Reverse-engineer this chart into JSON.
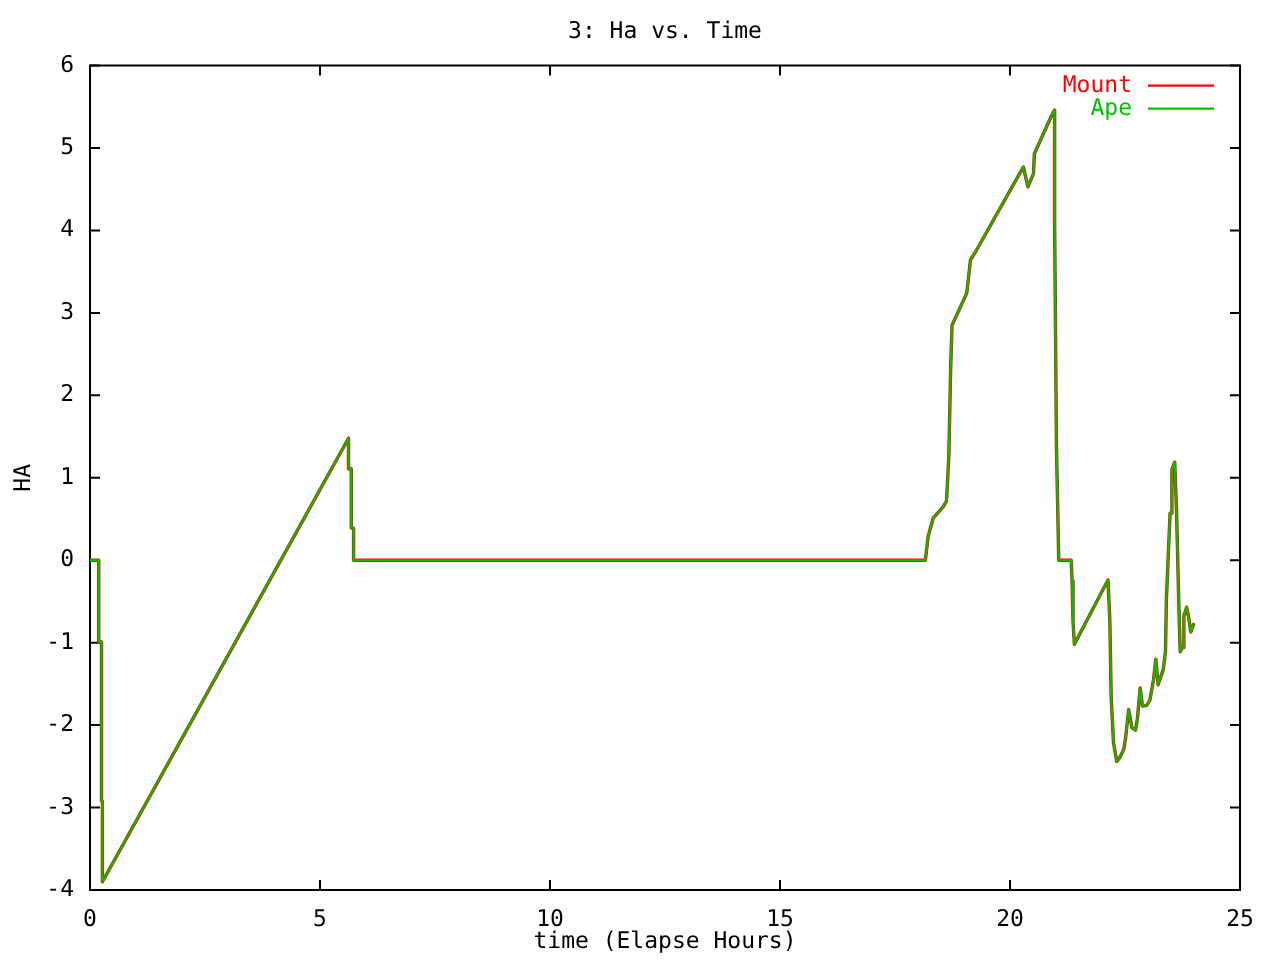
{
  "chart_data": {
    "type": "line",
    "title": "3: Ha vs. Time",
    "xlabel": "time (Elapse Hours)",
    "ylabel": "HA",
    "x": [
      0,
      0.19,
      0.19,
      0.25,
      0.25,
      0.27,
      0.27,
      5.62,
      5.62,
      5.68,
      5.68,
      5.73,
      5.73,
      18.16,
      18.22,
      18.33,
      18.55,
      18.62,
      18.67,
      18.71,
      18.74,
      19.06,
      19.14,
      19.27,
      20.29,
      20.39,
      20.51,
      20.53,
      20.91,
      20.97,
      20.97,
      21.01,
      21.06,
      21.33,
      21.35,
      21.37,
      21.4,
      22.13,
      22.17,
      22.2,
      22.25,
      22.32,
      22.39,
      22.47,
      22.51,
      22.58,
      22.65,
      22.73,
      22.77,
      22.83,
      22.88,
      22.97,
      23.04,
      23.12,
      23.17,
      23.22,
      23.33,
      23.38,
      23.4,
      23.48,
      23.52,
      23.58,
      23.62,
      23.67,
      23.7,
      23.74,
      23.78,
      23.84,
      23.88,
      23.93,
      23.99
    ],
    "series": [
      {
        "name": "Mount",
        "color": "#ff0000",
        "values": [
          0,
          0,
          -0.99,
          -0.99,
          -2.92,
          -2.92,
          -3.9,
          1.48,
          1.11,
          1.11,
          0.39,
          0.39,
          0,
          0,
          0.29,
          0.51,
          0.65,
          0.72,
          1.26,
          2.33,
          2.85,
          3.24,
          3.64,
          3.76,
          4.77,
          4.53,
          4.69,
          4.93,
          5.4,
          5.46,
          4.09,
          1.38,
          0,
          0,
          -0.25,
          -0.74,
          -1.02,
          -0.24,
          -0.72,
          -1.67,
          -2.21,
          -2.44,
          -2.39,
          -2.3,
          -2.17,
          -1.81,
          -2.03,
          -2.06,
          -1.92,
          -1.55,
          -1.77,
          -1.76,
          -1.7,
          -1.45,
          -1.2,
          -1.51,
          -1.33,
          -1.11,
          -0.47,
          0.57,
          1.1,
          1.19,
          0.61,
          -0.54,
          -1.11,
          -1.06,
          -0.68,
          -0.57,
          -0.68,
          -0.87,
          -0.78
        ]
      },
      {
        "name": "Ape",
        "color": "#00c000",
        "values": [
          0,
          0,
          -0.99,
          -0.99,
          -2.92,
          -2.92,
          -3.9,
          1.48,
          1.11,
          1.11,
          0.39,
          0.39,
          0,
          0,
          0.29,
          0.51,
          0.65,
          0.72,
          1.26,
          2.33,
          2.85,
          3.24,
          3.64,
          3.76,
          4.77,
          4.53,
          4.69,
          4.93,
          5.4,
          5.46,
          4.09,
          1.38,
          0,
          0,
          -0.25,
          -0.74,
          -1.02,
          -0.24,
          -0.72,
          -1.67,
          -2.21,
          -2.44,
          -2.39,
          -2.3,
          -2.17,
          -1.81,
          -2.03,
          -2.06,
          -1.92,
          -1.55,
          -1.77,
          -1.76,
          -1.7,
          -1.45,
          -1.2,
          -1.51,
          -1.33,
          -1.11,
          -0.47,
          0.57,
          1.1,
          1.19,
          0.61,
          -0.54,
          -1.11,
          -1.06,
          -0.68,
          -0.57,
          -0.68,
          -0.87,
          -0.78
        ]
      }
    ],
    "xlim": [
      0,
      25
    ],
    "xticks": [
      0,
      5,
      10,
      15,
      20,
      25
    ],
    "ylim": [
      -4,
      6
    ],
    "yticks": [
      -4,
      -3,
      -2,
      -1,
      0,
      1,
      2,
      3,
      4,
      5,
      6
    ],
    "legend": "top right",
    "marker": "none",
    "line_style": "solid"
  }
}
